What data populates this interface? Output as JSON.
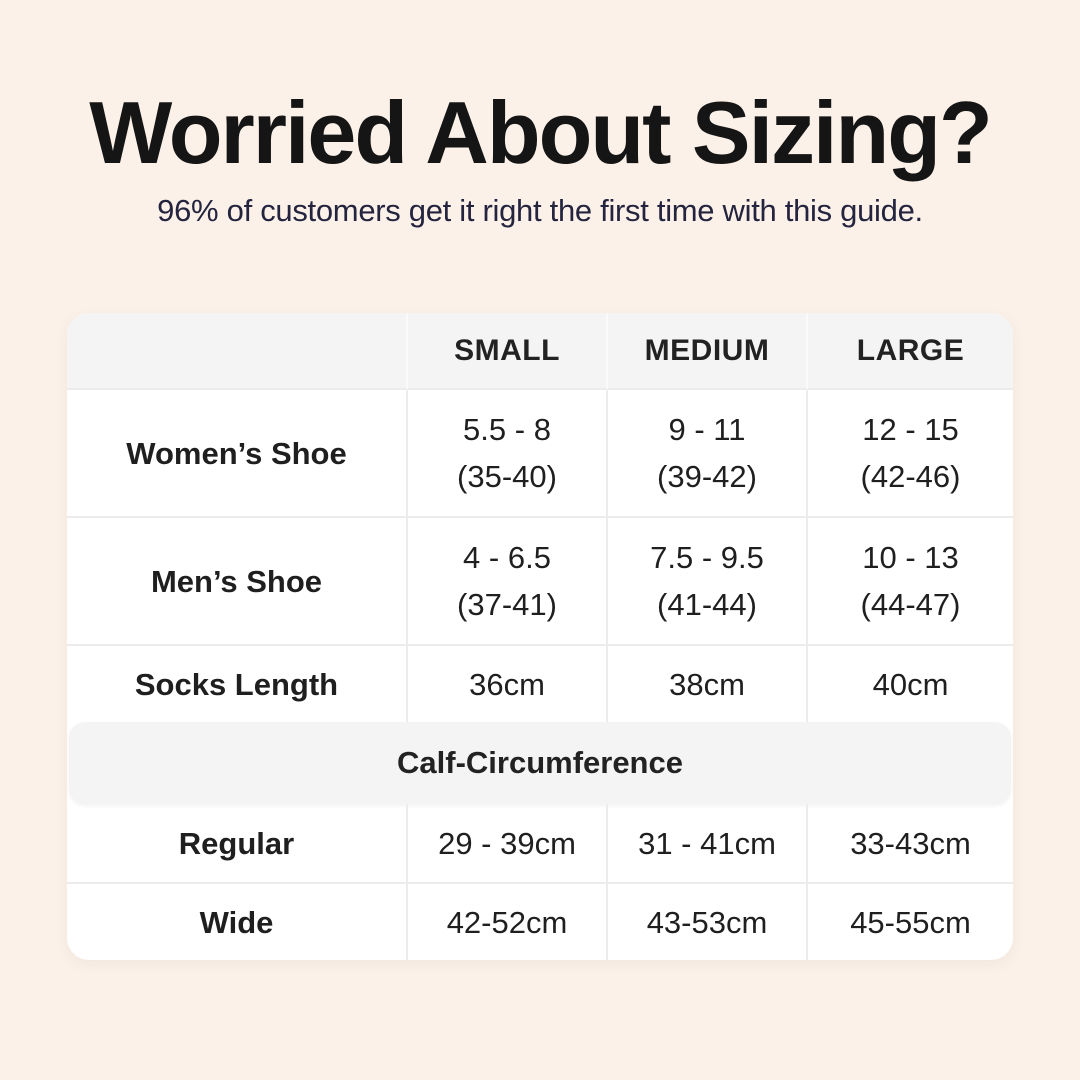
{
  "header": {
    "title": "Worried About Sizing?",
    "subtitle": "96% of customers get it right the first time with this guide."
  },
  "table": {
    "columns": [
      "",
      "SMALL",
      "MEDIUM",
      "LARGE"
    ],
    "rows": [
      {
        "label": "Women’s Shoe",
        "values": [
          [
            "5.5 - 8",
            "(35-40)"
          ],
          [
            "9 - 11",
            "(39-42)"
          ],
          [
            "12 - 15",
            "(42-46)"
          ]
        ]
      },
      {
        "label": "Men’s Shoe",
        "values": [
          [
            "4 - 6.5",
            "(37-41)"
          ],
          [
            "7.5 - 9.5",
            "(41-44)"
          ],
          [
            "10 - 13",
            "(44-47)"
          ]
        ]
      },
      {
        "label": "Socks Length",
        "values": [
          [
            "36cm"
          ],
          [
            "38cm"
          ],
          [
            "40cm"
          ]
        ]
      }
    ],
    "section": {
      "title": "Calf-Circumference",
      "rows": [
        {
          "label": "Regular",
          "values": [
            "29 - 39cm",
            "31 - 41cm",
            "33-43cm"
          ]
        },
        {
          "label": "Wide",
          "values": [
            "42-52cm",
            "43-53cm",
            "45-55cm"
          ]
        }
      ]
    }
  },
  "colors": {
    "page_background": "#fbf1e9",
    "title_text": "#151515",
    "subtitle_text": "#24243f",
    "table_background": "#ffffff",
    "header_band_background": "#f4f4f4",
    "divider": "#ececec",
    "body_text": "#1f1f1f"
  }
}
